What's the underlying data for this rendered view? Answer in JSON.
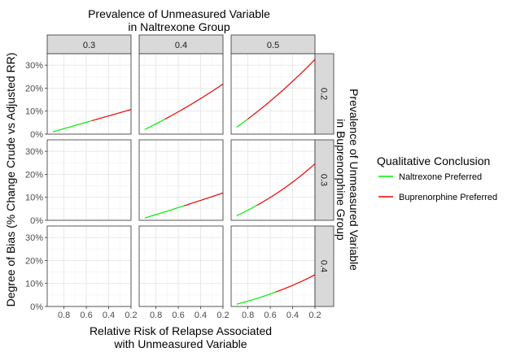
{
  "chart_data": {
    "type": "line",
    "title_lines": [
      "Prevalence of Unmeasured Variable",
      "in Naltrexone Group"
    ],
    "xlabel_lines": [
      "Relative Risk of Relapse Associated",
      "with Unmeasured Variable"
    ],
    "ylabel": "Degree of Bias (% Change Crude vs Adjusted RR)",
    "right_label_lines": [
      "Prevalence of Unmeasured Variable",
      "in Buprenorphine Group"
    ],
    "x_reversed": true,
    "xlim": [
      0.95,
      0.2
    ],
    "ylim": [
      0,
      35
    ],
    "x_ticks": [
      0.8,
      0.6,
      0.4,
      0.2
    ],
    "x_tick_labels": [
      "0.8",
      "0.6",
      "0.4",
      "0.2"
    ],
    "y_ticks": [
      0,
      10,
      20,
      30
    ],
    "y_tick_labels": [
      "0%",
      "10%",
      "20%",
      "30%"
    ],
    "grid": true,
    "col_strips": [
      "0.3",
      "0.4",
      "0.5"
    ],
    "row_strips": [
      "0.2",
      "0.3",
      "0.4"
    ],
    "legend": {
      "title": "Qualitative Conclusion",
      "placement": "right",
      "items": [
        {
          "label": "Naltrexone Preferred",
          "color": "#00ee00"
        },
        {
          "label": "Buprenorphine Preferred",
          "color": "#ee0000"
        }
      ]
    },
    "panels": [
      {
        "row": 0,
        "col": 0,
        "x_start": 0.9,
        "x_end": 0.2,
        "x_switch": 0.55,
        "y_start": 1,
        "y_switch": 6.3,
        "y_end": 10.7
      },
      {
        "row": 0,
        "col": 1,
        "x_start": 0.9,
        "x_end": 0.2,
        "x_switch": 0.72,
        "y_start": 2,
        "y_switch": 6.5,
        "y_end": 21.8
      },
      {
        "row": 0,
        "col": 2,
        "x_start": 0.9,
        "x_end": 0.2,
        "x_switch": 0.8,
        "y_start": 3,
        "y_switch": 6.6,
        "y_end": 32.5
      },
      {
        "row": 1,
        "col": 1,
        "x_start": 0.9,
        "x_end": 0.2,
        "x_switch": 0.55,
        "y_start": 1,
        "y_switch": 6.3,
        "y_end": 11.9
      },
      {
        "row": 1,
        "col": 2,
        "x_start": 0.9,
        "x_end": 0.2,
        "x_switch": 0.72,
        "y_start": 2,
        "y_switch": 6.5,
        "y_end": 24.6
      },
      {
        "row": 2,
        "col": 2,
        "x_start": 0.9,
        "x_end": 0.2,
        "x_switch": 0.55,
        "y_start": 1,
        "y_switch": 6.3,
        "y_end": 13.8
      }
    ]
  }
}
